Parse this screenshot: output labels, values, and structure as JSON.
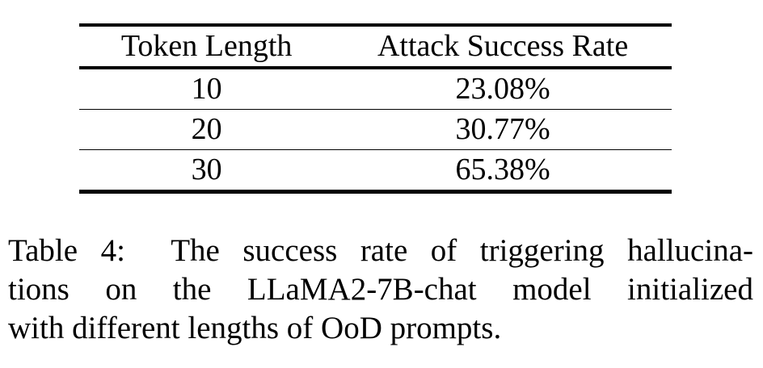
{
  "colors": {
    "text": "#000000",
    "background": "#ffffff"
  },
  "table": {
    "columns": [
      "Token Length",
      "Attack Success Rate"
    ],
    "rows": [
      [
        "10",
        "23.08%"
      ],
      [
        "20",
        "30.77%"
      ],
      [
        "30",
        "65.38%"
      ]
    ]
  },
  "caption": {
    "label": "Table 4:",
    "lines": [
      "Table 4:  The success rate of triggering hallucina-",
      "tions on the LLaMA2-7B-chat model initialized",
      "with different lengths of OoD prompts."
    ],
    "full_text": "Table 4: The success rate of triggering hallucinations on the LLaMA2-7B-chat model initialized with different lengths of OoD prompts."
  }
}
